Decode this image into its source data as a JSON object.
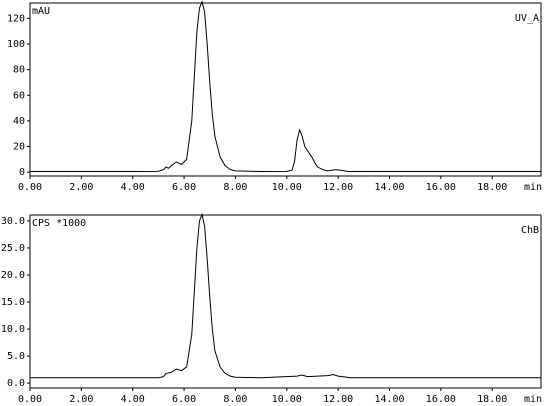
{
  "chart_data": [
    {
      "type": "line",
      "y_label": "mAU",
      "channel": "UV_A",
      "x_label": "min",
      "xlim": [
        0,
        19.9
      ],
      "ylim": [
        -3,
        132
      ],
      "xticks": [
        {
          "value": 0,
          "label": "0.00"
        },
        {
          "value": 2,
          "label": "2.00"
        },
        {
          "value": 4,
          "label": "4.00"
        },
        {
          "value": 6,
          "label": "6.00"
        },
        {
          "value": 8,
          "label": "8.00"
        },
        {
          "value": 10,
          "label": "10.00"
        },
        {
          "value": 12,
          "label": "12.00"
        },
        {
          "value": 14,
          "label": "14.00"
        },
        {
          "value": 16,
          "label": "16.00"
        },
        {
          "value": 18,
          "label": "18.00"
        }
      ],
      "yticks": [
        0,
        20,
        40,
        60,
        80,
        100,
        120
      ],
      "series": [
        {
          "color": "#000000",
          "x": [
            0,
            2,
            4,
            5,
            5.2,
            5.3,
            5.4,
            5.5,
            5.7,
            5.9,
            6.1,
            6.3,
            6.5,
            6.6,
            6.7,
            6.8,
            6.9,
            7.0,
            7.1,
            7.2,
            7.4,
            7.6,
            7.8,
            8.0,
            9.0,
            10.0,
            10.2,
            10.3,
            10.4,
            10.5,
            10.6,
            10.7,
            10.8,
            10.9,
            11.0,
            11.1,
            11.2,
            11.4,
            11.6,
            11.9,
            12.1,
            12.4,
            14,
            16,
            18,
            19.9
          ],
          "values": [
            0.5,
            0.5,
            0.5,
            0.6,
            2,
            4,
            3,
            5,
            8,
            6,
            10,
            40,
            110,
            128,
            133,
            125,
            100,
            70,
            45,
            28,
            12,
            5,
            2,
            1,
            0.5,
            0.6,
            1.5,
            8,
            25,
            33,
            28,
            20,
            17,
            14,
            11,
            7,
            4,
            2,
            1,
            2,
            1.5,
            0.5,
            0.5,
            0.5,
            0.5,
            0.5
          ]
        }
      ]
    },
    {
      "type": "line",
      "y_label": "CPS *1000",
      "channel": "ChB",
      "x_label": "min",
      "xlim": [
        0,
        19.9
      ],
      "ylim": [
        -0.9,
        31.1
      ],
      "xticks": [
        {
          "value": 0,
          "label": "0.00"
        },
        {
          "value": 2,
          "label": "2.00"
        },
        {
          "value": 4,
          "label": "4.00"
        },
        {
          "value": 6,
          "label": "6.00"
        },
        {
          "value": 8,
          "label": "8.00"
        },
        {
          "value": 10,
          "label": "10.00"
        },
        {
          "value": 12,
          "label": "12.00"
        },
        {
          "value": 14,
          "label": "14.00"
        },
        {
          "value": 16,
          "label": "16.00"
        },
        {
          "value": 18,
          "label": "18.00"
        }
      ],
      "yticks": [
        {
          "value": 0,
          "label": "0.0"
        },
        {
          "value": 5,
          "label": "5.0"
        },
        {
          "value": 10,
          "label": "10.0"
        },
        {
          "value": 15,
          "label": "15.0"
        },
        {
          "value": 20,
          "label": "20.0"
        },
        {
          "value": 25,
          "label": "25.0"
        },
        {
          "value": 30,
          "label": "30.0"
        }
      ],
      "series": [
        {
          "color": "#000000",
          "x": [
            0,
            2,
            4,
            5,
            5.2,
            5.3,
            5.5,
            5.7,
            5.9,
            6.1,
            6.3,
            6.5,
            6.6,
            6.7,
            6.8,
            6.9,
            7.0,
            7.1,
            7.2,
            7.4,
            7.6,
            7.8,
            8.0,
            9.0,
            10.4,
            10.6,
            10.8,
            11.6,
            11.8,
            12.0,
            12.5,
            14,
            16,
            18,
            19.9
          ],
          "values": [
            1,
            1,
            1,
            1,
            1.2,
            1.8,
            2,
            2.6,
            2.3,
            3,
            9,
            25,
            30,
            31.2,
            29,
            23,
            16,
            10,
            6,
            3,
            1.8,
            1.3,
            1.1,
            1,
            1.3,
            1.5,
            1.2,
            1.4,
            1.6,
            1.3,
            1,
            1,
            1,
            1,
            1
          ]
        }
      ]
    }
  ]
}
